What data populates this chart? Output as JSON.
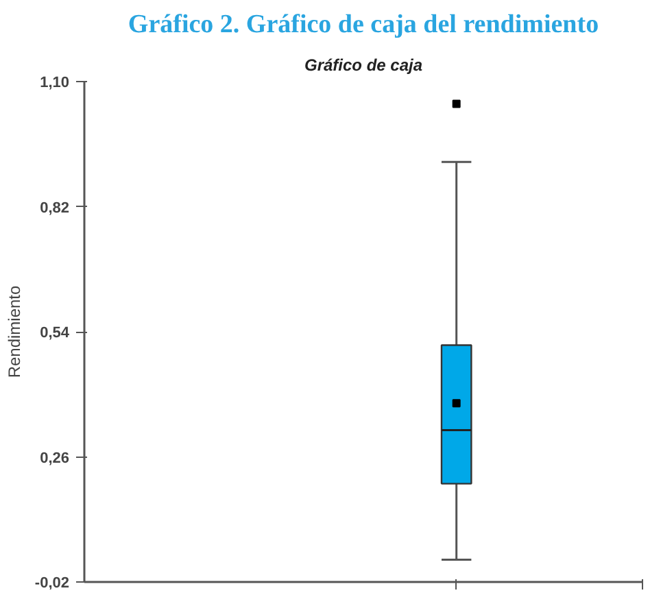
{
  "chart_data": {
    "type": "box",
    "title": "Gráfico 2. Gráfico de caja del rendimiento",
    "subtitle": "Gráfico de caja",
    "ylabel": "Rendimiento",
    "categories": [
      null
    ],
    "boxes": [
      {
        "low": 0.03,
        "q1": 0.2,
        "median": 0.32,
        "q3": 0.51,
        "high": 0.92,
        "mean": 0.38,
        "outliers": [
          1.05
        ]
      }
    ],
    "color": "#00a8e8",
    "ylim": [
      -0.02,
      1.1
    ],
    "yticks": [
      {
        "value": -0.02,
        "label": "-0,02"
      },
      {
        "value": 0.26,
        "label": "0,26"
      },
      {
        "value": 0.54,
        "label": "0,54"
      },
      {
        "value": 0.82,
        "label": "0,82"
      },
      {
        "value": 1.1,
        "label": "1,10"
      }
    ],
    "tick_labels": "y",
    "grid": false,
    "marker": "square"
  }
}
